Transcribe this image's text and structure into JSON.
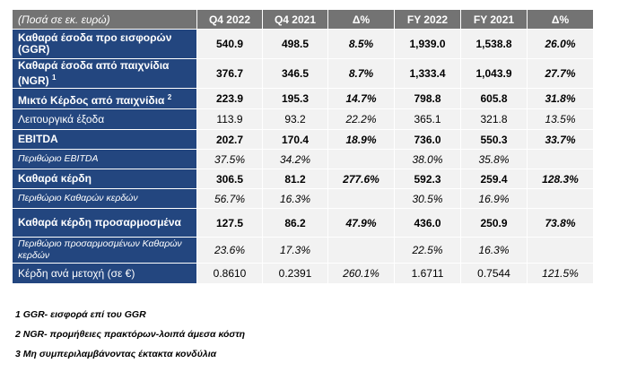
{
  "header": {
    "label": "(Ποσά σε εκ. ευρώ)",
    "cols": [
      "Q4 2022",
      "Q4 2021",
      "Δ%",
      "FY 2022",
      "FY 2021",
      "Δ%"
    ]
  },
  "rows": [
    {
      "label": "Καθαρά έσοδα προ εισφορών (GGR)",
      "sup": "",
      "bold": true,
      "sub": false,
      "h": 33,
      "values": [
        "540.9",
        "498.5",
        "8.5%",
        "1,939.0",
        "1,538.8",
        "26.0%"
      ]
    },
    {
      "label": "Καθαρά έσοδα από παιχνίδια (NGR)",
      "sup": "1",
      "bold": true,
      "sub": false,
      "h": 33,
      "values": [
        "376.7",
        "346.5",
        "8.7%",
        "1,333.4",
        "1,043.9",
        "27.7%"
      ]
    },
    {
      "label": "Μικτό Κέρδος από παιχνίδια",
      "sup": "2",
      "bold": true,
      "sub": false,
      "h": 23,
      "values": [
        "223.9",
        "195.3",
        "14.7%",
        "798.8",
        "605.8",
        "31.8%"
      ]
    },
    {
      "label": "Λειτουργικά έξοδα",
      "sup": "",
      "bold": false,
      "sub": false,
      "h": 23,
      "values": [
        "113.9",
        "93.2",
        "22.2%",
        "365.1",
        "321.8",
        "13.5%"
      ]
    },
    {
      "label": "EBITDA",
      "sup": "",
      "bold": true,
      "sub": false,
      "h": 22,
      "values": [
        "202.7",
        "170.4",
        "18.9%",
        "736.0",
        "550.3",
        "33.7%"
      ]
    },
    {
      "label": "Περιθώριο EBITDA",
      "sup": "",
      "bold": false,
      "sub": true,
      "h": 22,
      "values": [
        "37.5%",
        "34.2%",
        "",
        "38.0%",
        "35.8%",
        ""
      ]
    },
    {
      "label": "Καθαρά κέρδη",
      "sup": "",
      "bold": true,
      "sub": false,
      "h": 22,
      "values": [
        "306.5",
        "81.2",
        "277.6%",
        "592.3",
        "259.4",
        "128.3%"
      ]
    },
    {
      "label": "Περιθώριο Καθαρών κερδών",
      "sup": "",
      "bold": false,
      "sub": true,
      "h": 22,
      "values": [
        "56.7%",
        "16.3%",
        "",
        "30.5%",
        "16.9%",
        ""
      ]
    },
    {
      "label": "Καθαρά κέρδη προσαρμοσμένα",
      "sup": "",
      "bold": true,
      "sub": false,
      "h": 32,
      "values": [
        "127.5",
        "86.2",
        "47.9%",
        "436.0",
        "250.9",
        "73.8%"
      ]
    },
    {
      "label": "Περιθώριο προσαρμοσμένων Καθαρών κερδών",
      "sup": "",
      "bold": false,
      "sub": true,
      "h": 29,
      "values": [
        "23.6%",
        "17.3%",
        "",
        "22.5%",
        "16.3%",
        ""
      ]
    },
    {
      "label": "Κέρδη ανά μετοχή (σε €)",
      "sup": "",
      "bold": false,
      "sub": false,
      "h": 23,
      "values": [
        "0.8610",
        "0.2391",
        "260.1%",
        "1.6711",
        "0.7544",
        "121.5%"
      ]
    }
  ],
  "notes": [
    "1 GGR- εισφορά επί του GGR",
    "2 NGR- προμήθειες πρακτόρων-λοιπά άμεσα κόστη",
    "3 Μη συμπεριλαμβάνοντας έκτακτα κονδύλια"
  ]
}
